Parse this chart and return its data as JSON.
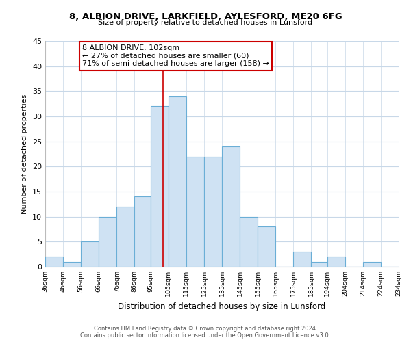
{
  "title": "8, ALBION DRIVE, LARKFIELD, AYLESFORD, ME20 6FG",
  "subtitle": "Size of property relative to detached houses in Lunsford",
  "xlabel": "Distribution of detached houses by size in Lunsford",
  "ylabel": "Number of detached properties",
  "bar_edges": [
    36,
    46,
    56,
    66,
    76,
    86,
    95,
    105,
    115,
    125,
    135,
    145,
    155,
    165,
    175,
    185,
    194,
    204,
    214,
    224,
    234
  ],
  "bar_heights": [
    2,
    1,
    5,
    10,
    12,
    14,
    32,
    34,
    22,
    22,
    24,
    10,
    8,
    0,
    3,
    1,
    2,
    0,
    1,
    0
  ],
  "bar_color": "#cfe2f3",
  "bar_edge_color": "#6aaed6",
  "reference_line_x": 102,
  "reference_line_color": "#cc0000",
  "annotation_line1": "8 ALBION DRIVE: 102sqm",
  "annotation_line2": "← 27% of detached houses are smaller (60)",
  "annotation_line3": "71% of semi-detached houses are larger (158) →",
  "box_edge_color": "#cc0000",
  "footer_line1": "Contains HM Land Registry data © Crown copyright and database right 2024.",
  "footer_line2": "Contains public sector information licensed under the Open Government Licence v3.0.",
  "ylim": [
    0,
    45
  ],
  "yticks": [
    0,
    5,
    10,
    15,
    20,
    25,
    30,
    35,
    40,
    45
  ],
  "tick_labels": [
    "36sqm",
    "46sqm",
    "56sqm",
    "66sqm",
    "76sqm",
    "86sqm",
    "95sqm",
    "105sqm",
    "115sqm",
    "125sqm",
    "135sqm",
    "145sqm",
    "155sqm",
    "165sqm",
    "175sqm",
    "185sqm",
    "194sqm",
    "204sqm",
    "214sqm",
    "224sqm",
    "234sqm"
  ],
  "bg_color": "#ffffff",
  "grid_color": "#c8d8e8",
  "title_fontsize": 9.5,
  "subtitle_fontsize": 8,
  "ylabel_fontsize": 8,
  "xlabel_fontsize": 8.5,
  "tick_fontsize": 6.8,
  "annotation_fontsize": 8,
  "footer_fontsize": 6
}
